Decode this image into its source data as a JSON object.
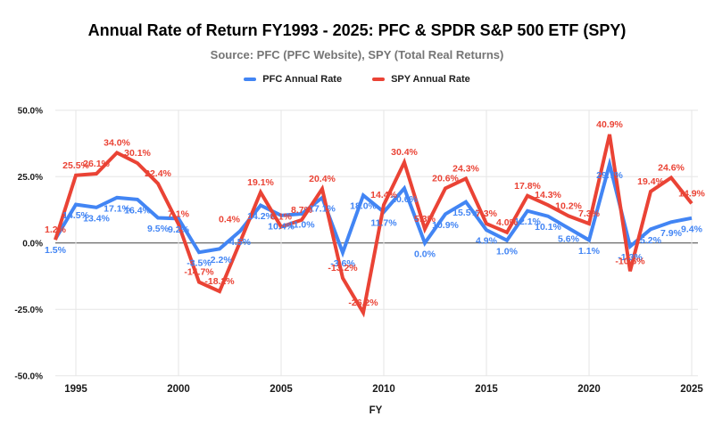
{
  "title": "Annual Rate of Return FY1993 - 2025: PFC & SPDR S&P 500 ETF (SPY)",
  "subtitle": "Source: PFC (PFC Website), SPY (Total Real Returns)",
  "legend": {
    "pfc_label": "PFC Annual Rate",
    "spy_label": "SPY Annual Rate"
  },
  "colors": {
    "pfc": "#4285f4",
    "spy": "#ea4335",
    "grid": "#e6e6e6",
    "zero_line": "#424242",
    "axis_text": "#1a1a1a"
  },
  "chart_data": {
    "type": "line",
    "title": "Annual Rate of Return FY1993 - 2025: PFC & SPDR S&P 500 ETF (SPY)",
    "subtitle": "Source: PFC (PFC Website), SPY (Total Real Returns)",
    "xlabel": "FY",
    "ylabel": "",
    "ylim": [
      -50,
      50
    ],
    "grid": true,
    "legend_position": "top",
    "y_ticks": [
      {
        "value": 50,
        "label": "50.0%"
      },
      {
        "value": 25,
        "label": "25.0%"
      },
      {
        "value": 0,
        "label": "0.0%"
      },
      {
        "value": -25,
        "label": "-25.0%"
      },
      {
        "value": -50,
        "label": "-50.0%"
      }
    ],
    "x_ticks": [
      "1995",
      "2000",
      "2005",
      "2010",
      "2015",
      "2020",
      "2025"
    ],
    "x": [
      1994,
      1995,
      1996,
      1997,
      1998,
      1999,
      2000,
      2001,
      2002,
      2003,
      2004,
      2005,
      2006,
      2007,
      2008,
      2009,
      2010,
      2011,
      2012,
      2013,
      2014,
      2015,
      2016,
      2017,
      2018,
      2019,
      2020,
      2021,
      2022,
      2023,
      2024,
      2025
    ],
    "series": [
      {
        "name": "PFC Annual Rate",
        "color": "#4285f4",
        "values": [
          1.5,
          14.5,
          13.4,
          17.1,
          16.4,
          9.5,
          9.2,
          -3.5,
          -2.2,
          4.5,
          14.2,
          10.4,
          11.0,
          17.1,
          -3.6,
          18.0,
          11.7,
          20.6,
          0.0,
          10.9,
          15.5,
          4.9,
          1.0,
          12.1,
          10.1,
          5.6,
          1.1,
          29.7,
          -1.3,
          5.2,
          7.9,
          9.4
        ]
      },
      {
        "name": "SPY Annual Rate",
        "color": "#ea4335",
        "values": [
          1.2,
          25.5,
          26.1,
          34.0,
          30.1,
          22.4,
          7.1,
          -14.7,
          -18.2,
          0.4,
          19.1,
          6.1,
          8.7,
          20.4,
          -13.2,
          -26.2,
          14.4,
          30.4,
          5.3,
          20.6,
          24.3,
          7.3,
          4.0,
          17.8,
          14.3,
          10.2,
          7.3,
          40.9,
          -10.6,
          19.4,
          24.6,
          14.9
        ]
      }
    ],
    "data_label_format": "0.0%"
  }
}
